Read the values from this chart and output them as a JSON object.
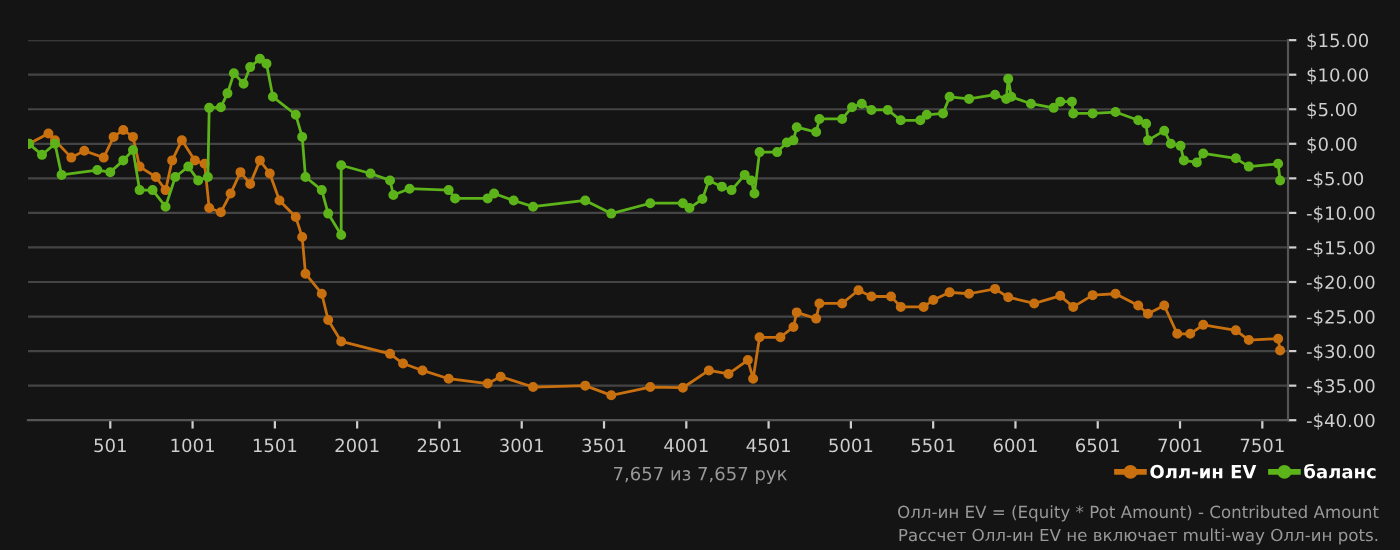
{
  "chart_data": {
    "type": "line",
    "xlim": [
      1,
      7657
    ],
    "xticks": [
      501,
      1001,
      1501,
      2001,
      2501,
      3001,
      3501,
      4001,
      4501,
      5001,
      5501,
      6001,
      6501,
      7001,
      7501
    ],
    "ylim": [
      -40,
      15
    ],
    "yticks": [
      {
        "value": 15,
        "label": "$15.00"
      },
      {
        "value": 10,
        "label": "$10.00"
      },
      {
        "value": 5,
        "label": "$5.00"
      },
      {
        "value": 0,
        "label": "$0.00"
      },
      {
        "value": -5,
        "label": "-$5.00"
      },
      {
        "value": -10,
        "label": "-$10.00"
      },
      {
        "value": -15,
        "label": "-$15.00"
      },
      {
        "value": -20,
        "label": "-$20.00"
      },
      {
        "value": -25,
        "label": "-$25.00"
      },
      {
        "value": -30,
        "label": "-$30.00"
      },
      {
        "value": -35,
        "label": "-$35.00"
      },
      {
        "value": -40,
        "label": "-$40.00"
      }
    ],
    "grid": "y",
    "legend": "bottom right",
    "marker": "circle",
    "line_style": "solid",
    "series": [
      {
        "name": "Олл-ин EV",
        "color": "#c8700f",
        "x": [
          7,
          125,
          165,
          264,
          343,
          461,
          521,
          580,
          639,
          679,
          778,
          837,
          877,
          936,
          1015,
          1074,
          1102,
          1173,
          1232,
          1292,
          1351,
          1410,
          1470,
          1529,
          1628,
          1667,
          1687,
          1786,
          1825,
          1904,
          2201,
          2280,
          2398,
          2557,
          2794,
          2873,
          3070,
          3387,
          3545,
          3782,
          3980,
          4138,
          4257,
          4375,
          4407,
          4446,
          4573,
          4652,
          4672,
          4790,
          4810,
          4948,
          5047,
          5126,
          5245,
          5304,
          5443,
          5502,
          5601,
          5719,
          5877,
          5957,
          6115,
          6273,
          6352,
          6470,
          6609,
          6747,
          6806,
          6905,
          6984,
          7063,
          7142,
          7340,
          7419,
          7597,
          7609
        ],
        "values": [
          0.0,
          1.5,
          0.5,
          -2.0,
          -1.0,
          -2.0,
          1.0,
          2.0,
          1.0,
          -3.3,
          -4.8,
          -6.7,
          -2.4,
          0.5,
          -2.4,
          -2.9,
          -9.3,
          -9.9,
          -7.2,
          -4.1,
          -5.8,
          -2.4,
          -4.3,
          -8.2,
          -10.6,
          -13.5,
          -18.8,
          -21.7,
          -25.5,
          -28.6,
          -30.4,
          -31.8,
          -32.8,
          -34.0,
          -34.7,
          -33.7,
          -35.2,
          -35.0,
          -36.4,
          -35.2,
          -35.3,
          -32.8,
          -33.3,
          -31.3,
          -34.0,
          -28.0,
          -28.0,
          -26.5,
          -24.4,
          -25.3,
          -23.1,
          -23.1,
          -21.2,
          -22.1,
          -22.1,
          -23.6,
          -23.6,
          -22.6,
          -21.5,
          -21.7,
          -21.0,
          -22.2,
          -23.1,
          -22.0,
          -23.6,
          -21.9,
          -21.7,
          -23.4,
          -24.6,
          -23.4,
          -27.5,
          -27.5,
          -26.2,
          -27.0,
          -28.4,
          -28.2,
          -29.9
        ]
      },
      {
        "name": "баланс",
        "color": "#5cb31a",
        "x": [
          7,
          86,
          165,
          205,
          422,
          501,
          580,
          639,
          679,
          758,
          837,
          896,
          975,
          1035,
          1094,
          1102,
          1173,
          1213,
          1252,
          1311,
          1351,
          1410,
          1450,
          1489,
          1628,
          1667,
          1687,
          1786,
          1825,
          1904,
          1904,
          2082,
          2201,
          2221,
          2319,
          2557,
          2596,
          2794,
          2833,
          2952,
          3070,
          3387,
          3545,
          3782,
          3980,
          4020,
          4099,
          4138,
          4217,
          4276,
          4356,
          4395,
          4415,
          4446,
          4553,
          4612,
          4652,
          4672,
          4790,
          4810,
          4948,
          5008,
          5067,
          5126,
          5225,
          5304,
          5423,
          5462,
          5561,
          5601,
          5719,
          5877,
          5945,
          5957,
          5976,
          6095,
          6233,
          6273,
          6344,
          6352,
          6470,
          6609,
          6747,
          6795,
          6806,
          6905,
          6945,
          7004,
          7024,
          7103,
          7142,
          7340,
          7419,
          7597,
          7609
        ],
        "values": [
          0.0,
          -1.6,
          0.0,
          -4.5,
          -3.8,
          -4.1,
          -2.4,
          -0.9,
          -6.7,
          -6.7,
          -9.1,
          -4.8,
          -3.3,
          -5.3,
          -4.8,
          5.2,
          5.3,
          7.3,
          10.2,
          8.7,
          11.1,
          12.3,
          11.6,
          6.8,
          4.2,
          1.0,
          -4.8,
          -6.7,
          -10.1,
          -13.2,
          -3.1,
          -4.3,
          -5.3,
          -7.4,
          -6.5,
          -6.7,
          -7.9,
          -7.9,
          -7.2,
          -8.2,
          -9.1,
          -8.2,
          -10.1,
          -8.6,
          -8.6,
          -9.3,
          -8.0,
          -5.3,
          -6.2,
          -6.7,
          -4.5,
          -5.3,
          -7.2,
          -1.2,
          -1.2,
          0.2,
          0.5,
          2.4,
          1.7,
          3.6,
          3.6,
          5.3,
          5.8,
          4.9,
          4.9,
          3.4,
          3.4,
          4.2,
          4.4,
          6.8,
          6.5,
          7.1,
          6.5,
          9.4,
          6.8,
          5.8,
          5.2,
          6.1,
          6.1,
          4.4,
          4.4,
          4.6,
          3.4,
          2.9,
          0.5,
          1.9,
          0.0,
          -0.3,
          -2.4,
          -2.7,
          -1.4,
          -2.1,
          -3.3,
          -2.9,
          -5.3
        ]
      }
    ],
    "annotations": [
      "7,657 из 7,657 рук",
      "Олл-ин EV = (Equity * Pot Amount) - Contributed Amount",
      "Рассчет Олл-ин EV не включает multi-way Олл-ин pots."
    ]
  }
}
